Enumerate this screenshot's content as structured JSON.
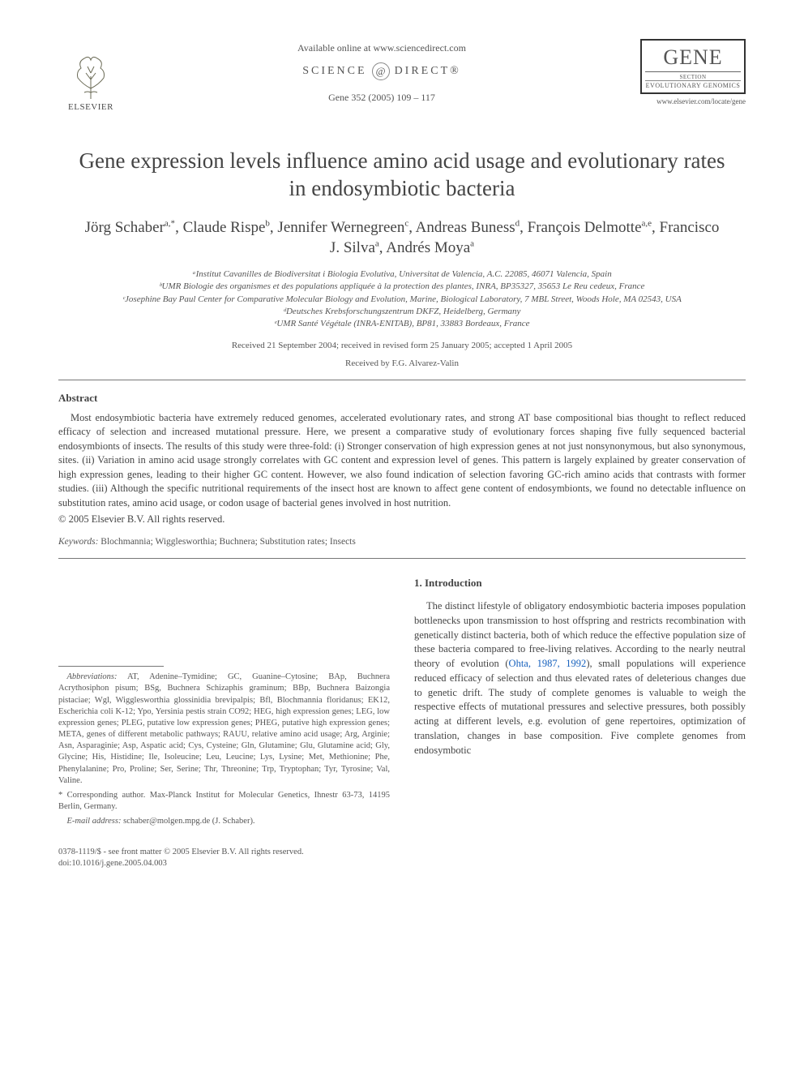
{
  "header": {
    "available_online": "Available online at www.sciencedirect.com",
    "sciencedirect_left": "SCIENCE",
    "sciencedirect_at": "@",
    "sciencedirect_right": "DIRECT®",
    "citation": "Gene 352 (2005) 109 – 117",
    "publisher_name": "ELSEVIER",
    "journal_title": "GENE",
    "journal_section_label": "SECTION",
    "journal_section": "EVOLUTIONARY GENOMICS",
    "journal_url": "www.elsevier.com/locate/gene"
  },
  "title": "Gene expression levels influence amino acid usage and evolutionary rates in endosymbiotic bacteria",
  "authors_html": "Jörg Schaber<sup>a,*</sup>, Claude Rispe<sup>b</sup>, Jennifer Wernegreen<sup>c</sup>, Andreas Buness<sup>d</sup>, François Delmotte<sup>a,e</sup>, Francisco J. Silva<sup>a</sup>, Andrés Moya<sup>a</sup>",
  "affiliations": [
    "ᵃInstitut Cavanilles de Biodiversitat i Biologia Evolutiva, Universitat de Valencia, A.C. 22085, 46071 Valencia, Spain",
    "ᵇUMR Biologie des organismes et des populations appliquée à la protection des plantes, INRA, BP35327, 35653 Le Reu cedeux, France",
    "ᶜJosephine Bay Paul Center for Comparative Molecular Biology and Evolution, Marine, Biological Laboratory, 7 MBL Street, Woods Hole, MA 02543, USA",
    "ᵈDeutsches Krebsforschungszentrum DKFZ, Heidelberg, Germany",
    "ᵉUMR Santé Végétale (INRA-ENITAB), BP81, 33883 Bordeaux, France"
  ],
  "dates": "Received 21 September 2004; received in revised form 25 January 2005; accepted 1 April 2005",
  "received_by": "Received by F.G. Alvarez-Valin",
  "abstract": {
    "heading": "Abstract",
    "body": "Most endosymbiotic bacteria have extremely reduced genomes, accelerated evolutionary rates, and strong AT base compositional bias thought to reflect reduced efficacy of selection and increased mutational pressure. Here, we present a comparative study of evolutionary forces shaping five fully sequenced bacterial endosymbionts of insects. The results of this study were three-fold: (i) Stronger conservation of high expression genes at not just nonsynonymous, but also synonymous, sites. (ii) Variation in amino acid usage strongly correlates with GC content and expression level of genes. This pattern is largely explained by greater conservation of high expression genes, leading to their higher GC content. However, we also found indication of selection favoring GC-rich amino acids that contrasts with former studies. (iii) Although the specific nutritional requirements of the insect host are known to affect gene content of endosymbionts, we found no detectable influence on substitution rates, amino acid usage, or codon usage of bacterial genes involved in host nutrition.",
    "copyright": "© 2005 Elsevier B.V. All rights reserved."
  },
  "keywords": {
    "label": "Keywords:",
    "text": " Blochmannia; Wigglesworthia; Buchnera; Substitution rates; Insects"
  },
  "footnotes": {
    "abbrev_label": "Abbreviations:",
    "abbrev_text": " AT, Adenine–Tymidine; GC, Guanine–Cytosine; BAp, Buchnera Acrythosiphon pisum; BSg, Buchnera Schizaphis graminum; BBp, Buchnera Baizongia pistaciae; Wgl, Wigglesworthia glossinidia brevipalpis; Bfl, Blochmannia floridanus; EK12, Escherichia coli K-12; Ypo, Yersinia pestis strain CO92; HEG, high expression genes; LEG, low expression genes; PLEG, putative low expression genes; PHEG, putative high expression genes; META, genes of different metabolic pathways; RAUU, relative amino acid usage; Arg, Arginie; Asn, Asparaginie; Asp, Aspatic acid; Cys, Cysteine; Gln, Glutamine; Glu, Glutamine acid; Gly, Glycine; His, Histidine; Ile, Isoleucine; Leu, Leucine; Lys, Lysine; Met, Methionine; Phe, Phenylalanine; Pro, Proline; Ser, Serine; Thr, Threonine; Trp, Tryptophan; Tyr, Tyrosine; Val, Valine.",
    "corr": "* Corresponding author. Max-Planck Institut for Molecular Genetics, Ihnestr 63-73, 14195 Berlin, Germany.",
    "email_label": "E-mail address:",
    "email": " schaber@molgen.mpg.de (J. Schaber)."
  },
  "intro": {
    "heading": "1. Introduction",
    "body_html": "The distinct lifestyle of obligatory endosymbiotic bacteria imposes population bottlenecks upon transmission to host offspring and restricts recombination with genetically distinct bacteria, both of which reduce the effective population size of these bacteria compared to free-living relatives. According to the nearly neutral theory of evolution (<span class=\"ref\">Ohta, 1987, 1992</span>), small populations will experience reduced efficacy of selection and thus elevated rates of deleterious changes due to genetic drift. The study of complete genomes is valuable to weigh the respective effects of mutational pressures and selective pressures, both possibly acting at different levels, e.g. evolution of gene repertoires, optimization of translation, changes in base composition. Five complete genomes from endosymbotic"
  },
  "footer": {
    "line1": "0378-1119/$ - see front matter © 2005 Elsevier B.V. All rights reserved.",
    "line2": "doi:10.1016/j.gene.2005.04.003"
  },
  "colors": {
    "text": "#3a3a3a",
    "muted": "#555555",
    "link": "#1560bd",
    "rule": "#777777",
    "background": "#ffffff"
  }
}
